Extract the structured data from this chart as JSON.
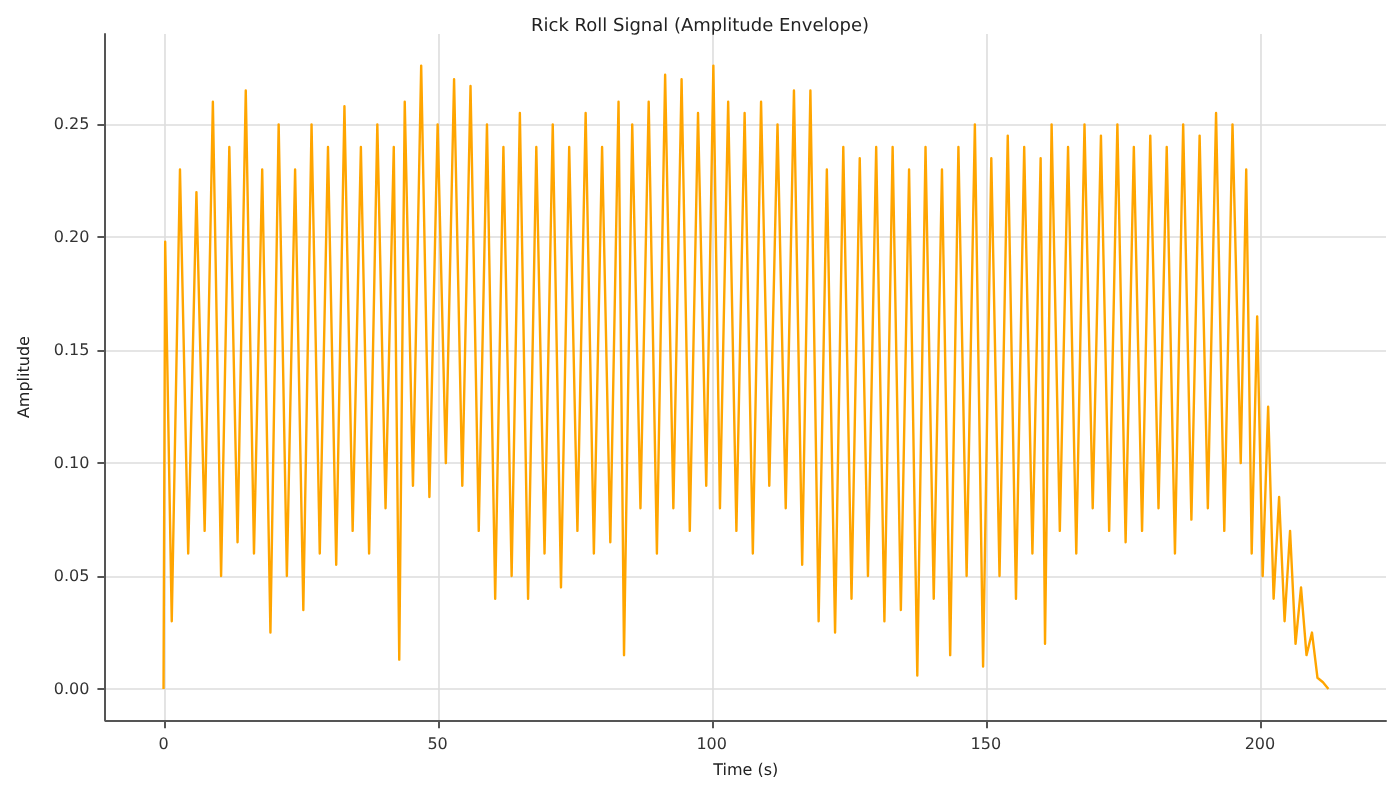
{
  "chart_data": {
    "type": "line",
    "title": "Rick Roll Signal (Amplitude Envelope)",
    "xlabel": "Time (s)",
    "ylabel": "Amplitude",
    "x": [
      0,
      0.3,
      1.5,
      3,
      4.5,
      6,
      7.5,
      9,
      10.5,
      12,
      13.5,
      15,
      16.5,
      18,
      19.5,
      21,
      22.5,
      24,
      25.5,
      27,
      28.5,
      30,
      31.5,
      33,
      34.5,
      36,
      37.5,
      39,
      40.5,
      42,
      43,
      44,
      45.5,
      47,
      48.5,
      50,
      51.5,
      53,
      54.5,
      56,
      57.5,
      59,
      60.5,
      62,
      63.5,
      65,
      66.5,
      68,
      69.5,
      71,
      72.5,
      74,
      75.5,
      77,
      78.5,
      80,
      81.5,
      83,
      84,
      85.5,
      87,
      88.5,
      90,
      91.5,
      93,
      94.5,
      96,
      97.5,
      99,
      100.3,
      101.5,
      103,
      104.5,
      106,
      107.5,
      109,
      110.5,
      112,
      113.5,
      115,
      116.5,
      118,
      119.5,
      121,
      122.5,
      124,
      125.5,
      127,
      128.5,
      130,
      131.5,
      133,
      134.5,
      136,
      137.5,
      139,
      140.5,
      142,
      143.5,
      145,
      146.5,
      148,
      149.5,
      151,
      152.5,
      154,
      155.5,
      157,
      158.5,
      160,
      160.8,
      162,
      163.5,
      165,
      166.5,
      168,
      169.5,
      171,
      172.5,
      174,
      175.5,
      177,
      178.5,
      180,
      181.5,
      183,
      184.5,
      186,
      187.5,
      189,
      190.5,
      192,
      193.5,
      195,
      196.5,
      197.5,
      198.5,
      199.5,
      200.5,
      201.5,
      202.5,
      203.5,
      204.5,
      205.5,
      206.5,
      207.5,
      208.5,
      209.5,
      210.5,
      211.5,
      212.5
    ],
    "series": [
      {
        "color": "#ffa500",
        "values": [
          0,
          0.198,
          0.03,
          0.23,
          0.06,
          0.22,
          0.07,
          0.26,
          0.05,
          0.24,
          0.065,
          0.265,
          0.06,
          0.23,
          0.025,
          0.25,
          0.05,
          0.23,
          0.035,
          0.25,
          0.06,
          0.24,
          0.055,
          0.258,
          0.07,
          0.24,
          0.06,
          0.25,
          0.08,
          0.24,
          0.013,
          0.26,
          0.09,
          0.276,
          0.085,
          0.25,
          0.1,
          0.27,
          0.09,
          0.267,
          0.07,
          0.25,
          0.04,
          0.24,
          0.05,
          0.255,
          0.04,
          0.24,
          0.06,
          0.25,
          0.045,
          0.24,
          0.07,
          0.255,
          0.06,
          0.24,
          0.065,
          0.26,
          0.015,
          0.25,
          0.08,
          0.26,
          0.06,
          0.272,
          0.08,
          0.27,
          0.07,
          0.255,
          0.09,
          0.276,
          0.08,
          0.26,
          0.07,
          0.255,
          0.06,
          0.26,
          0.09,
          0.25,
          0.08,
          0.265,
          0.055,
          0.265,
          0.03,
          0.23,
          0.025,
          0.24,
          0.04,
          0.235,
          0.05,
          0.24,
          0.03,
          0.24,
          0.035,
          0.23,
          0.006,
          0.24,
          0.04,
          0.23,
          0.015,
          0.24,
          0.05,
          0.25,
          0.01,
          0.235,
          0.05,
          0.245,
          0.04,
          0.24,
          0.06,
          0.235,
          0.02,
          0.25,
          0.07,
          0.24,
          0.06,
          0.25,
          0.08,
          0.245,
          0.07,
          0.25,
          0.065,
          0.24,
          0.07,
          0.245,
          0.08,
          0.24,
          0.06,
          0.25,
          0.075,
          0.245,
          0.08,
          0.255,
          0.07,
          0.25,
          0.1,
          0.23,
          0.06,
          0.165,
          0.05,
          0.125,
          0.04,
          0.085,
          0.03,
          0.07,
          0.02,
          0.045,
          0.015,
          0.025,
          0.005,
          0.003,
          0
        ]
      }
    ],
    "xlim": [
      -10.6,
      223
    ],
    "xticks": [
      0,
      50,
      100,
      150,
      200
    ],
    "ylim": [
      -0.0138,
      0.29
    ],
    "yticks": [
      {
        "value": 0,
        "label": "0.00"
      },
      0.05,
      {
        "value": 0.1,
        "label": "0.10"
      },
      0.15,
      {
        "value": 0.2,
        "label": "0.20"
      },
      0.25
    ],
    "grid": true,
    "marker": "none",
    "line_style": "solid"
  }
}
